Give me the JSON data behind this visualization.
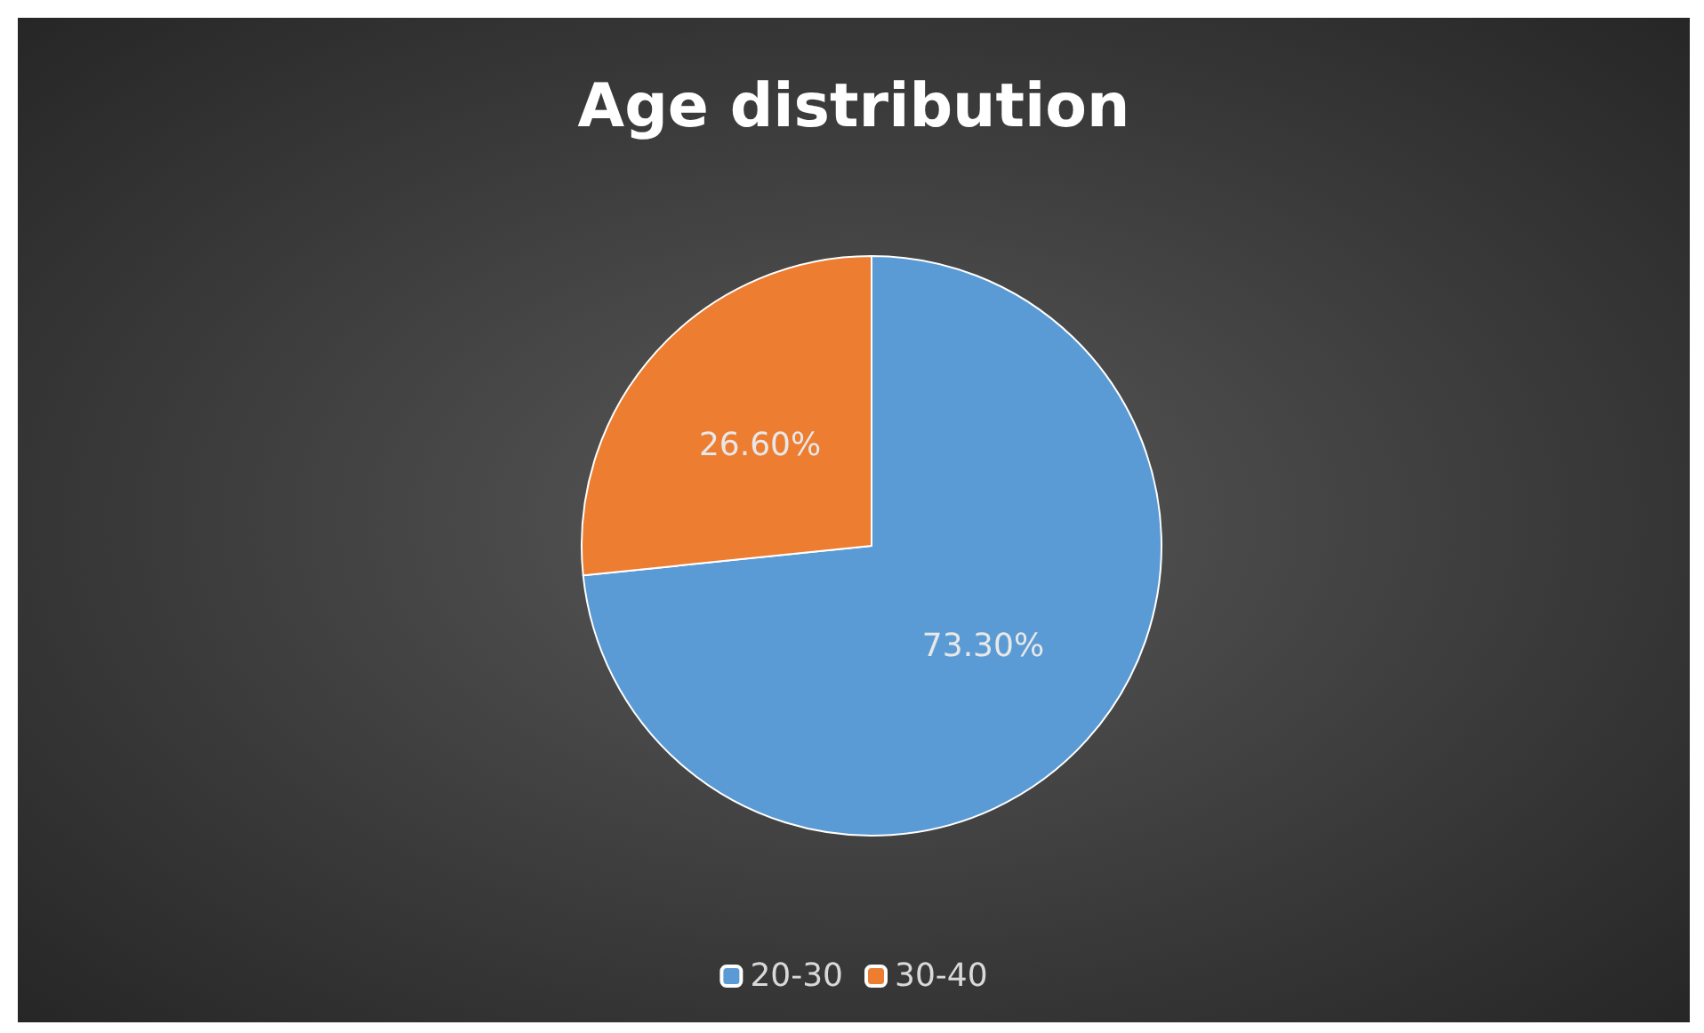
{
  "chart_data": {
    "type": "pie",
    "title": "Age distribution",
    "categories": [
      "20-30",
      "30-40"
    ],
    "values": [
      73.3,
      26.6
    ],
    "colors": [
      "#5b9bd5",
      "#ed7d31"
    ],
    "value_labels": [
      "73.30%",
      "26.60%"
    ],
    "legend": "bottom"
  }
}
